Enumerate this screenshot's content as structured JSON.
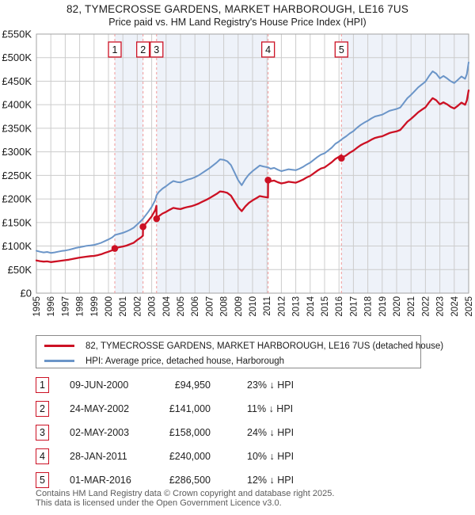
{
  "header": {
    "title": "82, TYMECROSSE GARDENS, MARKET HARBOROUGH, LE16 7US",
    "subtitle": "Price paid vs. HM Land Registry's House Price Index (HPI)"
  },
  "footer": {
    "line1": "Contains HM Land Registry data © Crown copyright and database right 2025.",
    "line2": "This data is licensed under the Open Government Licence v3.0."
  },
  "chart_data": {
    "type": "line",
    "title": "82, TYMECROSSE GARDENS, MARKET HARBOROUGH, LE16 7US — Price paid vs. HPI",
    "x_range": [
      1995,
      2025
    ],
    "y_range_k": [
      0,
      550
    ],
    "grid": true,
    "legend_position": "bottom",
    "y_ticks": [
      {
        "v": 0,
        "label": "£0"
      },
      {
        "v": 50,
        "label": "£50K"
      },
      {
        "v": 100,
        "label": "£100K"
      },
      {
        "v": 150,
        "label": "£150K"
      },
      {
        "v": 200,
        "label": "£200K"
      },
      {
        "v": 250,
        "label": "£250K"
      },
      {
        "v": 300,
        "label": "£300K"
      },
      {
        "v": 350,
        "label": "£350K"
      },
      {
        "v": 400,
        "label": "£400K"
      },
      {
        "v": 450,
        "label": "£450K"
      },
      {
        "v": 500,
        "label": "£500K"
      },
      {
        "v": 550,
        "label": "£550K"
      }
    ],
    "x_ticks": [
      1995,
      1996,
      1997,
      1998,
      1999,
      2000,
      2001,
      2002,
      2003,
      2004,
      2005,
      2006,
      2007,
      2008,
      2009,
      2010,
      2011,
      2012,
      2013,
      2014,
      2015,
      2016,
      2017,
      2018,
      2019,
      2020,
      2021,
      2022,
      2023,
      2024,
      2025
    ],
    "series": [
      {
        "name": "price-paid",
        "label": "82, TYMECROSSE GARDENS, MARKET HARBOROUGH, LE16 7US (detached house)",
        "color": "#cc1124",
        "width": 2.3,
        "points": [
          [
            1995.0,
            69.5
          ],
          [
            1995.25,
            68
          ],
          [
            1995.5,
            67
          ],
          [
            1995.75,
            67.5
          ],
          [
            1996.0,
            66
          ],
          [
            1996.25,
            67
          ],
          [
            1996.5,
            68
          ],
          [
            1996.75,
            69
          ],
          [
            1997.0,
            70
          ],
          [
            1997.25,
            71
          ],
          [
            1997.5,
            72.5
          ],
          [
            1997.75,
            74
          ],
          [
            1998.0,
            75.5
          ],
          [
            1998.25,
            76.5
          ],
          [
            1998.5,
            77.5
          ],
          [
            1998.75,
            78.5
          ],
          [
            1999.0,
            79
          ],
          [
            1999.25,
            80.5
          ],
          [
            1999.5,
            82.5
          ],
          [
            1999.75,
            85.5
          ],
          [
            2000.0,
            88
          ],
          [
            2000.25,
            91
          ],
          [
            2000.44,
            94.95
          ],
          [
            2000.5,
            95.5
          ],
          [
            2000.75,
            97.5
          ],
          [
            2001.0,
            99
          ],
          [
            2001.25,
            101
          ],
          [
            2001.5,
            104
          ],
          [
            2001.75,
            107
          ],
          [
            2002.0,
            113
          ],
          [
            2002.25,
            118
          ],
          [
            2002.39,
            122
          ],
          [
            2002.4,
            141
          ],
          [
            2002.5,
            144.5
          ],
          [
            2002.75,
            153.5
          ],
          [
            2003.0,
            163
          ],
          [
            2003.25,
            176.5
          ],
          [
            2003.33,
            185.5
          ],
          [
            2003.34,
            158
          ],
          [
            2003.5,
            163.5
          ],
          [
            2003.75,
            169
          ],
          [
            2004.0,
            172.5
          ],
          [
            2004.25,
            177
          ],
          [
            2004.5,
            181
          ],
          [
            2004.75,
            179.5
          ],
          [
            2005.0,
            178.5
          ],
          [
            2005.25,
            181
          ],
          [
            2005.5,
            183
          ],
          [
            2005.75,
            184.5
          ],
          [
            2006.0,
            187
          ],
          [
            2006.25,
            190
          ],
          [
            2006.5,
            194
          ],
          [
            2006.75,
            197.5
          ],
          [
            2007.0,
            201.5
          ],
          [
            2007.25,
            206
          ],
          [
            2007.5,
            210.5
          ],
          [
            2007.75,
            216
          ],
          [
            2008.0,
            215
          ],
          [
            2008.25,
            213
          ],
          [
            2008.5,
            207
          ],
          [
            2008.75,
            194.5
          ],
          [
            2009.0,
            182.5
          ],
          [
            2009.25,
            174
          ],
          [
            2009.5,
            184
          ],
          [
            2009.75,
            191.5
          ],
          [
            2010.0,
            197
          ],
          [
            2010.25,
            201.5
          ],
          [
            2010.5,
            206
          ],
          [
            2010.75,
            204.5
          ],
          [
            2011.07,
            203
          ],
          [
            2011.08,
            240
          ],
          [
            2011.25,
            237.5
          ],
          [
            2011.5,
            239
          ],
          [
            2011.75,
            235.5
          ],
          [
            2012.0,
            233
          ],
          [
            2012.25,
            234.5
          ],
          [
            2012.5,
            236.5
          ],
          [
            2012.75,
            235.5
          ],
          [
            2013.0,
            234.5
          ],
          [
            2013.25,
            237.5
          ],
          [
            2013.5,
            241
          ],
          [
            2013.75,
            245.5
          ],
          [
            2014.0,
            249
          ],
          [
            2014.25,
            254.5
          ],
          [
            2014.5,
            260
          ],
          [
            2014.75,
            264.5
          ],
          [
            2015.0,
            267
          ],
          [
            2015.25,
            272.5
          ],
          [
            2015.5,
            278
          ],
          [
            2015.75,
            285
          ],
          [
            2016.0,
            289.5
          ],
          [
            2016.16,
            293
          ],
          [
            2016.17,
            286.5
          ],
          [
            2016.25,
            288.5
          ],
          [
            2016.5,
            292.5
          ],
          [
            2016.75,
            298
          ],
          [
            2017.0,
            302.5
          ],
          [
            2017.25,
            308.5
          ],
          [
            2017.5,
            314
          ],
          [
            2017.75,
            318
          ],
          [
            2018.0,
            321.5
          ],
          [
            2018.25,
            326
          ],
          [
            2018.5,
            329.5
          ],
          [
            2018.75,
            331.5
          ],
          [
            2019.0,
            333
          ],
          [
            2019.25,
            336.5
          ],
          [
            2019.5,
            340
          ],
          [
            2019.75,
            342
          ],
          [
            2020.0,
            343.5
          ],
          [
            2020.25,
            346.5
          ],
          [
            2020.5,
            355
          ],
          [
            2020.75,
            364
          ],
          [
            2021.0,
            370
          ],
          [
            2021.25,
            377
          ],
          [
            2021.5,
            384
          ],
          [
            2021.75,
            389.5
          ],
          [
            2022.0,
            394.5
          ],
          [
            2022.25,
            405
          ],
          [
            2022.5,
            414
          ],
          [
            2022.75,
            409.5
          ],
          [
            2023.0,
            401
          ],
          [
            2023.25,
            405
          ],
          [
            2023.5,
            401
          ],
          [
            2023.75,
            395.5
          ],
          [
            2024.0,
            392
          ],
          [
            2024.25,
            398
          ],
          [
            2024.5,
            404.5
          ],
          [
            2024.75,
            400
          ],
          [
            2024.875,
            409
          ],
          [
            2025.0,
            430.5
          ]
        ]
      },
      {
        "name": "hpi",
        "label": "HPI: Average price, detached house, Harborough",
        "color": "#6b95c8",
        "width": 2,
        "points": [
          [
            1995.0,
            90
          ],
          [
            1995.25,
            88
          ],
          [
            1995.5,
            86.5
          ],
          [
            1995.75,
            87.5
          ],
          [
            1996.0,
            85.5
          ],
          [
            1996.25,
            86.5
          ],
          [
            1996.5,
            88
          ],
          [
            1996.75,
            89.5
          ],
          [
            1997.0,
            90.5
          ],
          [
            1997.25,
            92
          ],
          [
            1997.5,
            94
          ],
          [
            1997.75,
            96
          ],
          [
            1998.0,
            97.5
          ],
          [
            1998.25,
            99
          ],
          [
            1998.5,
            100.5
          ],
          [
            1998.75,
            101.5
          ],
          [
            1999.0,
            102.5
          ],
          [
            1999.25,
            104.5
          ],
          [
            1999.5,
            107
          ],
          [
            1999.75,
            110.5
          ],
          [
            2000.0,
            114
          ],
          [
            2000.25,
            118
          ],
          [
            2000.44,
            123
          ],
          [
            2000.5,
            124
          ],
          [
            2000.75,
            126
          ],
          [
            2001.0,
            128
          ],
          [
            2001.25,
            131
          ],
          [
            2001.5,
            134.5
          ],
          [
            2001.75,
            139
          ],
          [
            2002.0,
            146
          ],
          [
            2002.25,
            153
          ],
          [
            2002.4,
            158
          ],
          [
            2002.5,
            162
          ],
          [
            2002.75,
            172
          ],
          [
            2003.0,
            183
          ],
          [
            2003.25,
            198
          ],
          [
            2003.34,
            208
          ],
          [
            2003.5,
            215
          ],
          [
            2003.75,
            222
          ],
          [
            2004.0,
            227
          ],
          [
            2004.25,
            233
          ],
          [
            2004.5,
            238
          ],
          [
            2004.75,
            236
          ],
          [
            2005.0,
            235
          ],
          [
            2005.25,
            238
          ],
          [
            2005.5,
            241
          ],
          [
            2005.75,
            243
          ],
          [
            2006.0,
            246
          ],
          [
            2006.25,
            250
          ],
          [
            2006.5,
            255
          ],
          [
            2006.75,
            260
          ],
          [
            2007.0,
            265
          ],
          [
            2007.25,
            271
          ],
          [
            2007.5,
            277
          ],
          [
            2007.75,
            284
          ],
          [
            2008.0,
            283
          ],
          [
            2008.25,
            280
          ],
          [
            2008.5,
            272
          ],
          [
            2008.75,
            256
          ],
          [
            2009.0,
            240
          ],
          [
            2009.25,
            229
          ],
          [
            2009.5,
            242
          ],
          [
            2009.75,
            252
          ],
          [
            2010.0,
            259
          ],
          [
            2010.25,
            265
          ],
          [
            2010.5,
            271
          ],
          [
            2010.75,
            269
          ],
          [
            2011.08,
            267
          ],
          [
            2011.25,
            264
          ],
          [
            2011.5,
            266
          ],
          [
            2011.75,
            262
          ],
          [
            2012.0,
            259
          ],
          [
            2012.25,
            261
          ],
          [
            2012.5,
            263
          ],
          [
            2012.75,
            262
          ],
          [
            2013.0,
            261
          ],
          [
            2013.25,
            264
          ],
          [
            2013.5,
            268
          ],
          [
            2013.75,
            273
          ],
          [
            2014.0,
            277
          ],
          [
            2014.25,
            283
          ],
          [
            2014.5,
            289
          ],
          [
            2014.75,
            294
          ],
          [
            2015.0,
            297
          ],
          [
            2015.25,
            303
          ],
          [
            2015.5,
            309
          ],
          [
            2015.75,
            317
          ],
          [
            2016.0,
            322
          ],
          [
            2016.17,
            326
          ],
          [
            2016.25,
            328
          ],
          [
            2016.5,
            333
          ],
          [
            2016.75,
            339
          ],
          [
            2017.0,
            344
          ],
          [
            2017.25,
            351
          ],
          [
            2017.5,
            357
          ],
          [
            2017.75,
            362
          ],
          [
            2018.0,
            366
          ],
          [
            2018.25,
            371
          ],
          [
            2018.5,
            375
          ],
          [
            2018.75,
            377
          ],
          [
            2019.0,
            379
          ],
          [
            2019.25,
            383
          ],
          [
            2019.5,
            387
          ],
          [
            2019.75,
            389
          ],
          [
            2020.0,
            391
          ],
          [
            2020.25,
            394
          ],
          [
            2020.5,
            404
          ],
          [
            2020.75,
            414
          ],
          [
            2021.0,
            421
          ],
          [
            2021.25,
            429
          ],
          [
            2021.5,
            437
          ],
          [
            2021.75,
            443
          ],
          [
            2022.0,
            449
          ],
          [
            2022.25,
            461
          ],
          [
            2022.5,
            471
          ],
          [
            2022.75,
            466
          ],
          [
            2023.0,
            456
          ],
          [
            2023.25,
            461
          ],
          [
            2023.5,
            456
          ],
          [
            2023.75,
            450
          ],
          [
            2024.0,
            446
          ],
          [
            2024.25,
            453
          ],
          [
            2024.5,
            460
          ],
          [
            2024.75,
            455
          ],
          [
            2024.875,
            465
          ],
          [
            2025.0,
            490
          ]
        ]
      }
    ],
    "sales": [
      {
        "n": "1",
        "x": 2000.44,
        "value_k": 94.95,
        "date": "09-JUN-2000",
        "price": "£94,950",
        "vs_hpi": "23% ↓ HPI"
      },
      {
        "n": "2",
        "x": 2002.4,
        "value_k": 141,
        "date": "24-MAY-2002",
        "price": "£141,000",
        "vs_hpi": "11% ↓ HPI"
      },
      {
        "n": "3",
        "x": 2003.34,
        "value_k": 158,
        "date": "02-MAY-2003",
        "price": "£158,000",
        "vs_hpi": "24% ↓ HPI"
      },
      {
        "n": "4",
        "x": 2011.08,
        "value_k": 240,
        "date": "28-JAN-2011",
        "price": "£240,000",
        "vs_hpi": "10% ↓ HPI"
      },
      {
        "n": "5",
        "x": 2016.17,
        "value_k": 286.5,
        "date": "01-MAR-2016",
        "price": "£286,500",
        "vs_hpi": "12% ↓ HPI"
      }
    ],
    "bands": [
      [
        2000.44,
        2002.4
      ],
      [
        2003.34,
        2011.08
      ],
      [
        2016.17,
        2025
      ]
    ],
    "colors": {
      "band": "#eef2f9",
      "grid": "#cccccc",
      "frame": "#a3a3a3",
      "sale_line": "#f19999",
      "marker_box_border": "#cc1124",
      "marker_box_fill": "#ffffff",
      "tick_text": "#1a1a1a"
    }
  }
}
